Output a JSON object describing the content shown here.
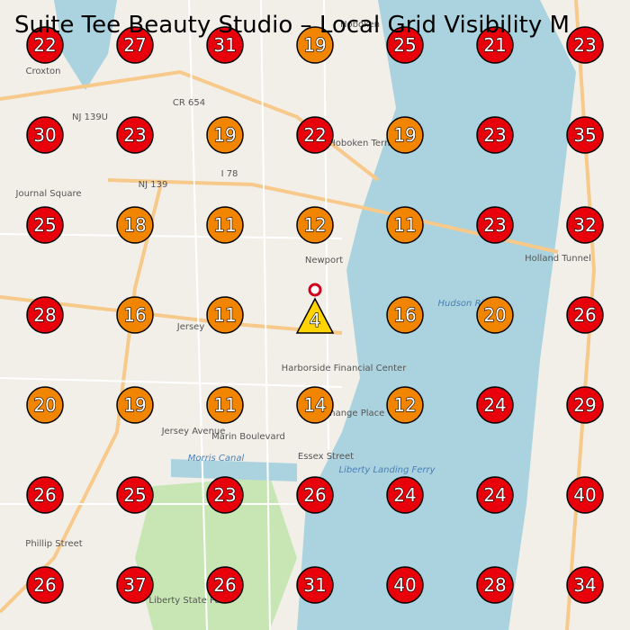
{
  "title": "Suite Tee Beauty Studio – Local Grid Visibility M",
  "grid": {
    "rows": [
      [
        {
          "value": 22,
          "color": "#e8000b"
        },
        {
          "value": 27,
          "color": "#e8000b"
        },
        {
          "value": 31,
          "color": "#e8000b"
        },
        {
          "value": 19,
          "color": "#f28500"
        },
        {
          "value": 25,
          "color": "#e8000b"
        },
        {
          "value": 21,
          "color": "#e8000b"
        },
        {
          "value": 23,
          "color": "#e8000b"
        }
      ],
      [
        {
          "value": 30,
          "color": "#e8000b"
        },
        {
          "value": 23,
          "color": "#e8000b"
        },
        {
          "value": 19,
          "color": "#f28500"
        },
        {
          "value": 22,
          "color": "#e8000b"
        },
        {
          "value": 19,
          "color": "#f28500"
        },
        {
          "value": 23,
          "color": "#e8000b"
        },
        {
          "value": 35,
          "color": "#e8000b"
        }
      ],
      [
        {
          "value": 25,
          "color": "#e8000b"
        },
        {
          "value": 18,
          "color": "#f28500"
        },
        {
          "value": 11,
          "color": "#f28500"
        },
        {
          "value": 12,
          "color": "#f28500"
        },
        {
          "value": 11,
          "color": "#f28500"
        },
        {
          "value": 23,
          "color": "#e8000b"
        },
        {
          "value": 32,
          "color": "#e8000b"
        }
      ],
      [
        {
          "value": 28,
          "color": "#e8000b"
        },
        {
          "value": 16,
          "color": "#f28500"
        },
        {
          "value": 11,
          "color": "#f28500"
        },
        {
          "value": 4,
          "color": "#ffd400",
          "center": true
        },
        {
          "value": 16,
          "color": "#f28500"
        },
        {
          "value": 20,
          "color": "#f28500"
        },
        {
          "value": 26,
          "color": "#e8000b"
        }
      ],
      [
        {
          "value": 20,
          "color": "#f28500"
        },
        {
          "value": 19,
          "color": "#f28500"
        },
        {
          "value": 11,
          "color": "#f28500"
        },
        {
          "value": 14,
          "color": "#f28500"
        },
        {
          "value": 12,
          "color": "#f28500"
        },
        {
          "value": 24,
          "color": "#e8000b"
        },
        {
          "value": 29,
          "color": "#e8000b"
        }
      ],
      [
        {
          "value": 26,
          "color": "#e8000b"
        },
        {
          "value": 25,
          "color": "#e8000b"
        },
        {
          "value": 23,
          "color": "#e8000b"
        },
        {
          "value": 26,
          "color": "#e8000b"
        },
        {
          "value": 24,
          "color": "#e8000b"
        },
        {
          "value": 24,
          "color": "#e8000b"
        },
        {
          "value": 40,
          "color": "#e8000b"
        }
      ],
      [
        {
          "value": 26,
          "color": "#e8000b"
        },
        {
          "value": 37,
          "color": "#e8000b"
        },
        {
          "value": 26,
          "color": "#e8000b"
        },
        {
          "value": 31,
          "color": "#e8000b"
        },
        {
          "value": 40,
          "color": "#e8000b"
        },
        {
          "value": 28,
          "color": "#e8000b"
        },
        {
          "value": 34,
          "color": "#e8000b"
        }
      ]
    ]
  },
  "map_labels": [
    "Hoboken",
    "Croxton",
    "Journal Square",
    "NJ 139U",
    "CR 654",
    "NJ 139",
    "I 78",
    "Hoboken Terminal",
    "Newport",
    "Holland Tunnel",
    "Jersey",
    "Harborside Financial Center",
    "Exchange Place",
    "Jersey Avenue",
    "Marin Boulevard",
    "Morris Canal",
    "Essex Street",
    "Liberty Landing Ferry",
    "Hudson River",
    "Liberty State Park",
    "Phillip Street"
  ]
}
